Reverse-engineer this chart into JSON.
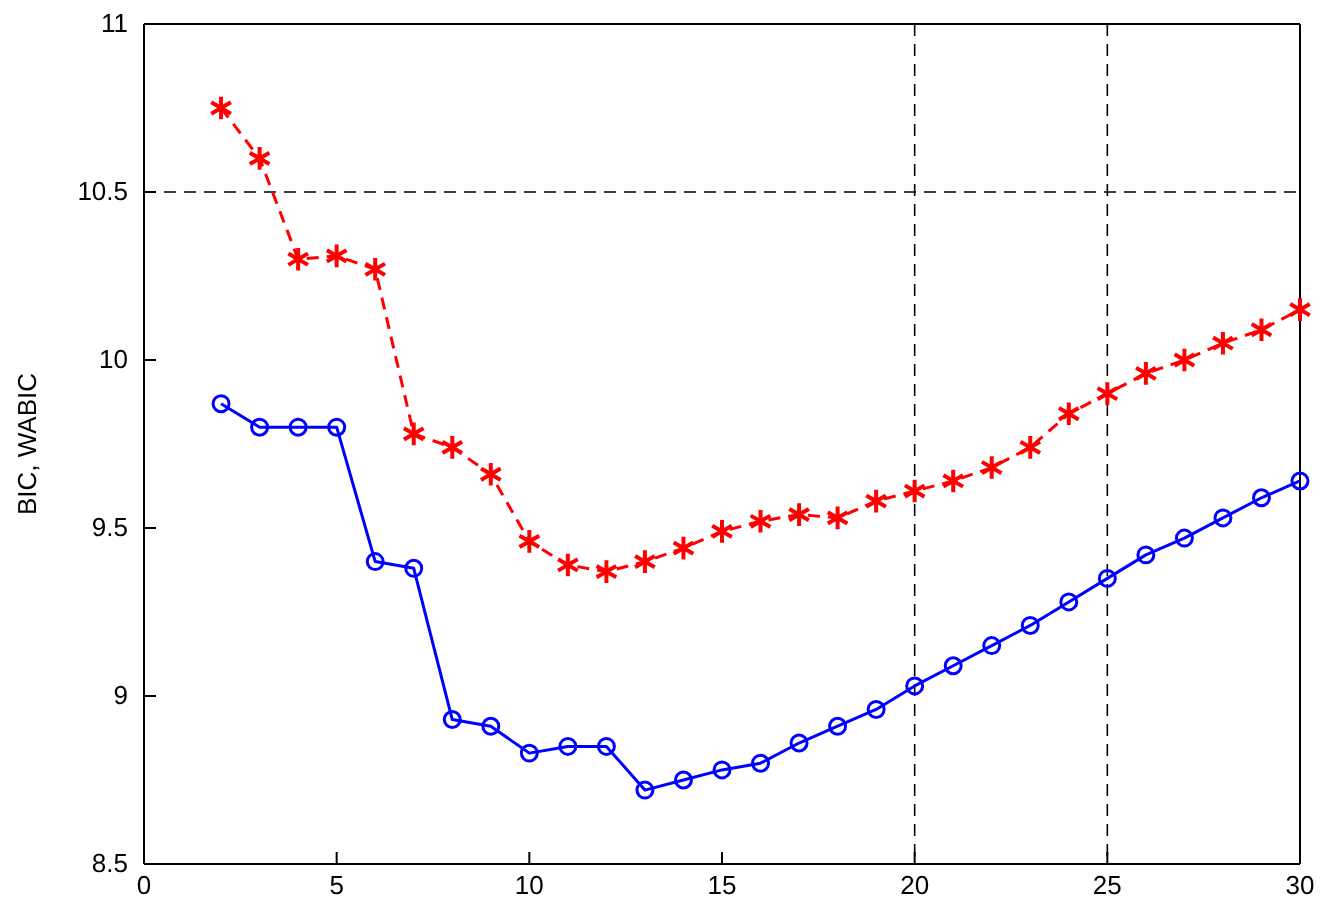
{
  "chart_data": {
    "type": "line",
    "ylabel": "BIC, WABIC",
    "xlim": [
      0,
      30
    ],
    "xticks": [
      0,
      5,
      10,
      15,
      20,
      25,
      30
    ],
    "ylim": [
      8.5,
      11
    ],
    "yticks": [
      8.5,
      9,
      9.5,
      10,
      10.5,
      11
    ],
    "x": [
      2,
      3,
      4,
      5,
      6,
      7,
      8,
      9,
      10,
      11,
      12,
      13,
      14,
      15,
      16,
      17,
      18,
      19,
      20,
      21,
      22,
      23,
      24,
      25,
      26,
      27,
      28,
      29,
      30
    ],
    "series": [
      {
        "color": "#ff0000",
        "marker": "cross",
        "line_style": "dashed",
        "values": [
          10.75,
          10.6,
          10.3,
          10.31,
          10.27,
          9.78,
          9.74,
          9.66,
          9.46,
          9.39,
          9.37,
          9.4,
          9.44,
          9.49,
          9.52,
          9.54,
          9.53,
          9.58,
          9.61,
          9.64,
          9.68,
          9.74,
          9.84,
          9.9,
          9.96,
          10.0,
          10.05,
          10.09,
          10.15
        ]
      },
      {
        "color": "#0000ff",
        "marker": "circle",
        "line_style": "solid",
        "values": [
          9.87,
          9.8,
          9.8,
          9.8,
          9.4,
          9.38,
          8.93,
          8.91,
          8.83,
          8.85,
          8.85,
          8.72,
          8.75,
          8.78,
          8.8,
          8.86,
          8.91,
          8.96,
          9.03,
          9.09,
          9.15,
          9.21,
          9.28,
          9.35,
          9.42,
          9.47,
          9.53,
          9.59,
          9.64
        ]
      }
    ],
    "ref_lines": [
      {
        "axis": "x",
        "value": 20,
        "color": "#000000",
        "line_style": "dashed"
      },
      {
        "axis": "x",
        "value": 25,
        "color": "#000000",
        "line_style": "dashed"
      },
      {
        "axis": "y",
        "value": 10.5,
        "color": "#000000",
        "line_style": "dashed"
      }
    ]
  }
}
